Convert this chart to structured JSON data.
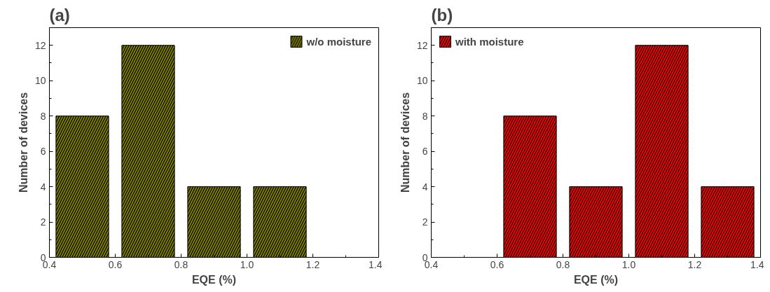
{
  "chart_data": [
    {
      "type": "bar",
      "title": "(a)",
      "xlabel": "EQE (%)",
      "ylabel": "Number of devices",
      "x": [
        0.5,
        0.7,
        0.9,
        1.1
      ],
      "xlim": [
        0.4,
        1.4
      ],
      "xticks": [
        0.4,
        0.6,
        0.8,
        {
          "value": 1,
          "label": "1.0"
        },
        1.2,
        1.4
      ],
      "ylim": [
        0,
        13
      ],
      "yticks": [
        0,
        2,
        4,
        6,
        8,
        10,
        12
      ],
      "grid": false,
      "legend": "top right",
      "series": [
        {
          "name": "w/o moisture",
          "color": "#808000",
          "values": [
            8,
            12,
            4,
            4
          ]
        }
      ]
    },
    {
      "type": "bar",
      "title": "(b)",
      "xlabel": "EQE (%)",
      "ylabel": "Number of devices",
      "x": [
        0.7,
        0.9,
        1.1,
        1.3
      ],
      "xlim": [
        0.4,
        1.4
      ],
      "xticks": [
        0.4,
        0.6,
        0.8,
        {
          "value": 1,
          "label": "1.0"
        },
        1.2,
        1.4
      ],
      "ylim": [
        0,
        13
      ],
      "yticks": [
        0,
        2,
        4,
        6,
        8,
        10,
        12
      ],
      "grid": false,
      "legend": "top left",
      "series": [
        {
          "name": "with moisture",
          "color": "#ff0000",
          "values": [
            8,
            4,
            12,
            4
          ]
        }
      ]
    }
  ]
}
